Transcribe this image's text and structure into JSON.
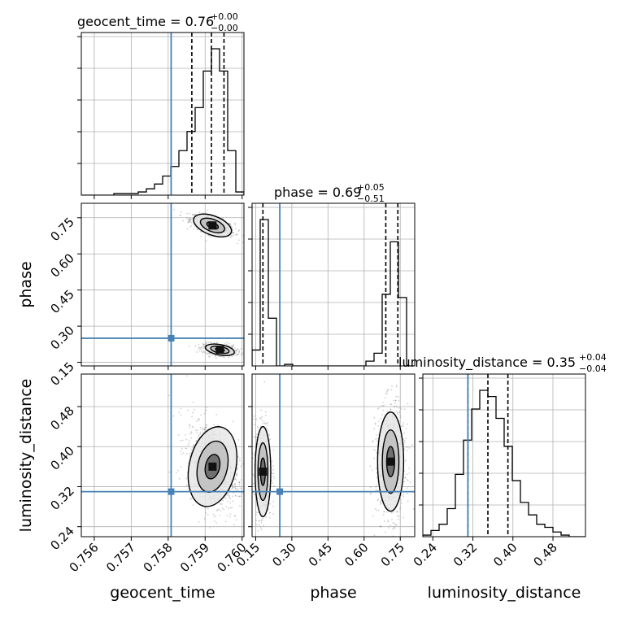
{
  "chart_data": {
    "type": "corner",
    "parameters": [
      "geocent_time",
      "phase",
      "luminosity_distance"
    ],
    "colors": {
      "truth": "#4682b4",
      "hist": "#000000",
      "grid": "#b0b0b0",
      "scatter": "#777777"
    },
    "truths": {
      "geocent_time": 0.75808,
      "phase": 0.25,
      "luminosity_distance": 0.31
    },
    "titles": [
      {
        "param": "geocent_time",
        "text": "geocent_time = 0.76",
        "sup": "+0.00",
        "sub": "−0.00"
      },
      {
        "param": "phase",
        "text": "phase = 0.69",
        "sup": "+0.05",
        "sub": "−0.51"
      },
      {
        "param": "luminosity_distance",
        "text": "luminosity_distance = 0.35",
        "sup": "+0.04",
        "sub": "−0.04"
      }
    ],
    "axis_labels": {
      "x": [
        "geocent_time",
        "phase",
        "luminosity_distance"
      ],
      "y": [
        "phase",
        "luminosity_distance"
      ]
    },
    "ticks": {
      "geocent_time": [
        "0.756",
        "0.757",
        "0.758",
        "0.759",
        "0.760"
      ],
      "phase": [
        "0.15",
        "0.30",
        "0.45",
        "0.60",
        "0.75"
      ],
      "luminosity_distance": [
        "0.24",
        "0.32",
        "0.40",
        "0.48"
      ]
    },
    "ranges": {
      "geocent_time": [
        0.75565,
        0.76005
      ],
      "phase": [
        0.135,
        0.81
      ],
      "luminosity_distance": [
        0.22,
        0.545
      ]
    },
    "quantiles": {
      "geocent_time": [
        0.75864,
        0.75917,
        0.75951
      ],
      "phase": [
        0.18,
        0.69,
        0.74
      ],
      "luminosity_distance": [
        0.31,
        0.35,
        0.39
      ]
    },
    "marginals": {
      "geocent_time": {
        "edges": [
          0.75565,
          0.75587,
          0.75609,
          0.75631,
          0.75653,
          0.75675,
          0.75697,
          0.75719,
          0.75741,
          0.75763,
          0.75785,
          0.75807,
          0.75829,
          0.75851,
          0.75873,
          0.75895,
          0.75917,
          0.75939,
          0.75961,
          0.75983,
          0.76005
        ],
        "counts": [
          0,
          0,
          0,
          0,
          1,
          1,
          1,
          2,
          4,
          7,
          12,
          18,
          28,
          40,
          55,
          78,
          92,
          78,
          28,
          2
        ]
      },
      "phase": {
        "edges": [
          0.135,
          0.16875,
          0.2025,
          0.23625,
          0.27,
          0.30375,
          0.3375,
          0.37125,
          0.405,
          0.43875,
          0.4725,
          0.50625,
          0.54,
          0.57375,
          0.6075,
          0.64125,
          0.675,
          0.70875,
          0.7425,
          0.77625,
          0.81
        ],
        "counts": [
          10,
          92,
          30,
          0,
          1,
          0,
          0,
          0,
          0,
          0,
          0,
          0,
          0,
          0,
          3,
          8,
          45,
          78,
          43,
          0
        ]
      },
      "luminosity_distance": {
        "edges": [
          0.22,
          0.23625,
          0.2525,
          0.26875,
          0.285,
          0.30125,
          0.3175,
          0.33375,
          0.35,
          0.36625,
          0.3825,
          0.39875,
          0.415,
          0.43125,
          0.4475,
          0.46375,
          0.48,
          0.49625,
          0.5125,
          0.52875,
          0.545
        ],
        "counts": [
          1,
          4,
          8,
          18,
          40,
          62,
          82,
          94,
          90,
          76,
          58,
          36,
          22,
          14,
          8,
          6,
          3,
          1,
          0,
          0
        ]
      }
    },
    "blobs": [
      {
        "x": "geocent_time",
        "y": "phase",
        "cx": 0.7592,
        "cy": 0.718,
        "sx": 0.0003,
        "sy": 0.022,
        "rho": -0.6,
        "n": 700
      },
      {
        "x": "geocent_time",
        "y": "phase",
        "cx": 0.7594,
        "cy": 0.202,
        "sx": 0.00022,
        "sy": 0.012,
        "rho": -0.3,
        "n": 600
      },
      {
        "x": "geocent_time",
        "y": "luminosity_distance",
        "cx": 0.7592,
        "cy": 0.36,
        "sx": 0.00035,
        "sy": 0.045,
        "rho": -0.35,
        "n": 900
      },
      {
        "x": "phase",
        "y": "luminosity_distance",
        "cx": 0.18,
        "cy": 0.35,
        "sx": 0.018,
        "sy": 0.05,
        "rho": 0.0,
        "n": 550
      },
      {
        "x": "phase",
        "y": "luminosity_distance",
        "cx": 0.71,
        "cy": 0.37,
        "sx": 0.03,
        "sy": 0.055,
        "rho": 0.0,
        "n": 900
      }
    ]
  }
}
